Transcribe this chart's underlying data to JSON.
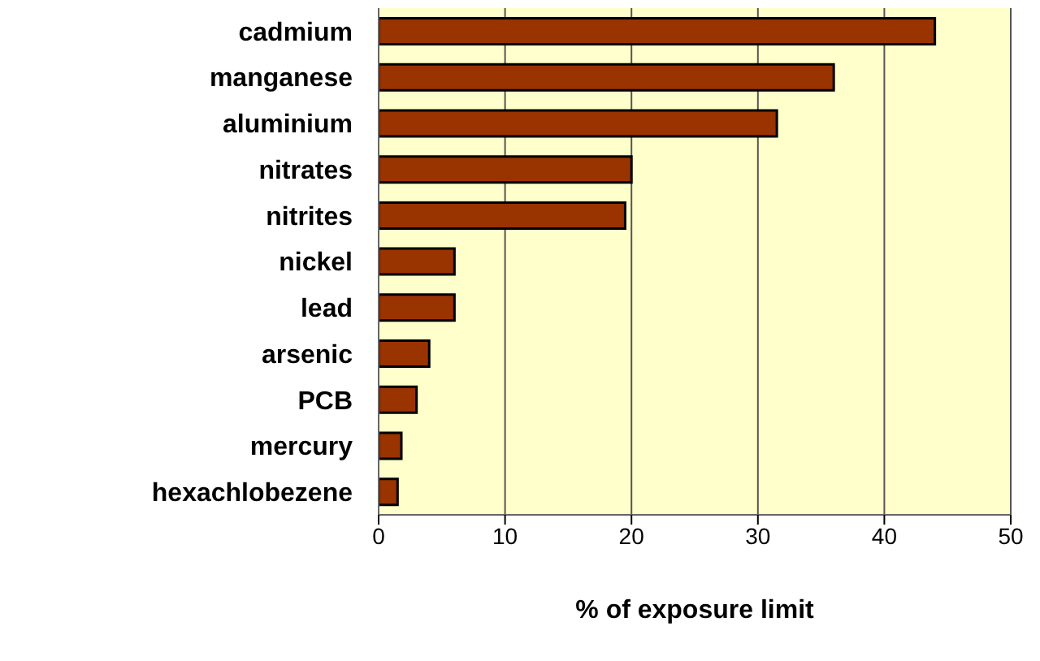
{
  "chart_data": {
    "type": "bar",
    "orientation": "horizontal",
    "xlabel": "% of exposure limit",
    "categories": [
      "cadmium",
      "manganese",
      "aluminium",
      "nitrates",
      "nitrites",
      "nickel",
      "lead",
      "arsenic",
      "PCB",
      "mercury",
      "hexachlobezene"
    ],
    "values": [
      44,
      36,
      31.5,
      20,
      19.5,
      6,
      6,
      4,
      3,
      1.8,
      1.5
    ],
    "color": "#993300",
    "xlim": [
      0,
      50
    ],
    "xticks": [
      0,
      10,
      20,
      30,
      40,
      50
    ],
    "grid": "x",
    "legend": false
  }
}
